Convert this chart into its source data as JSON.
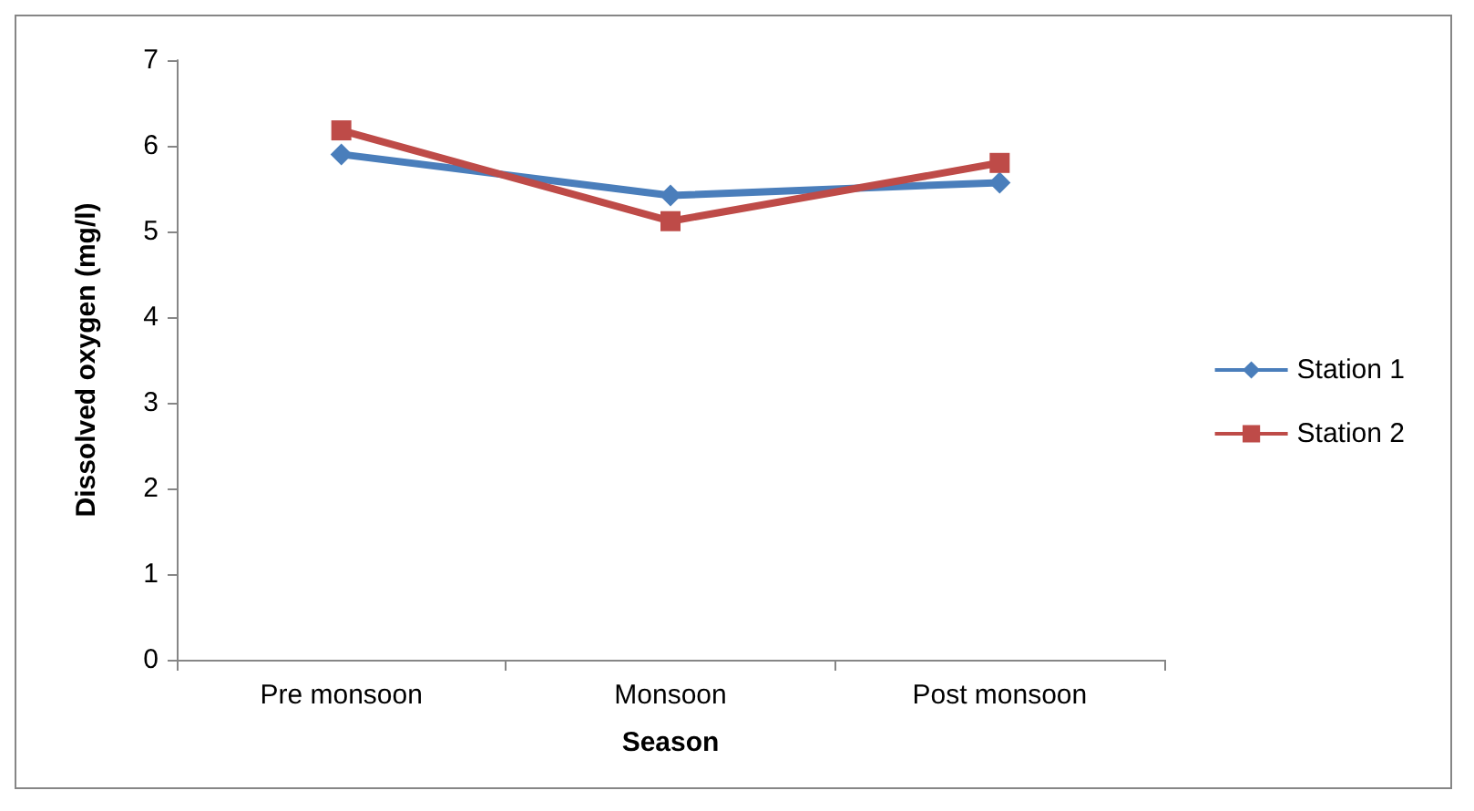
{
  "chart_data": {
    "type": "line",
    "xlabel": "Season",
    "ylabel": "Dissolved oxygen (mg/l)",
    "categories": [
      "Pre monsoon",
      "Monsoon",
      "Post monsoon"
    ],
    "series": [
      {
        "name": "Station 1",
        "color": "#4a7ebb",
        "values": [
          5.9,
          5.42,
          5.57
        ],
        "marker": "diamond"
      },
      {
        "name": "Station 2",
        "color": "#be4b48",
        "values": [
          6.18,
          5.12,
          5.8
        ],
        "marker": "square"
      }
    ],
    "ylim": [
      0,
      7
    ],
    "yticks": [
      0,
      1,
      2,
      3,
      4,
      5,
      6,
      7
    ],
    "grid": false,
    "legend": "right"
  }
}
